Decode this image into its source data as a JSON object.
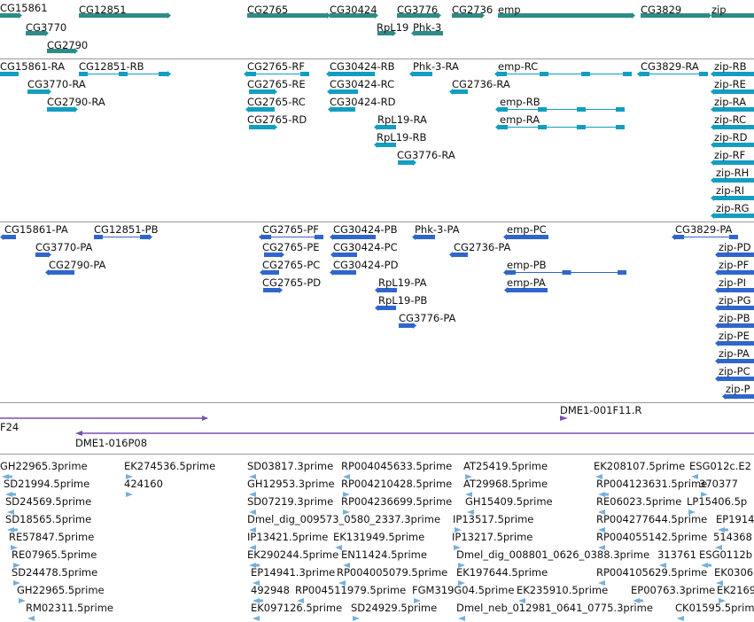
{
  "colors": {
    "gene": "#2e8b87",
    "transcript": "#139ec0",
    "protein": "#2f66cc",
    "clone": "#7a4fb5",
    "est": "#75b0dc",
    "separator": "#9a9a9a"
  },
  "tracks": {
    "genes": {
      "labels": [
        "CG15861",
        "CG12851",
        "CG2765",
        "CG30424",
        "CG3776",
        "CG2736",
        "emp",
        "CG3829",
        "zip",
        "CG3770",
        "RpL19",
        "Phk-3",
        "CG2790"
      ]
    },
    "transcripts": {
      "labels": [
        "CG15861-RA",
        "CG12851-RB",
        "CG2765-RF",
        "CG30424-RB",
        "Phk-3-RA",
        "emp-RC",
        "CG3829-RA",
        "zip-RB",
        "CG3770-RA",
        "CG2765-RE",
        "CG30424-RC",
        "CG2736-RA",
        "zip-RE",
        "CG2790-RA",
        "CG2765-RC",
        "CG30424-RD",
        "emp-RB",
        "zip-RA",
        "CG2765-RD",
        "RpL19-RA",
        "emp-RA",
        "zip-RC",
        "RpL19-RB",
        "zip-RD",
        "CG3776-RA",
        "zip-RF",
        "zip-RH",
        "zip-RI",
        "zip-RG"
      ]
    },
    "proteins": {
      "labels": [
        "CG15861-PA",
        "CG12851-PB",
        "CG2765-PF",
        "CG30424-PB",
        "Phk-3-PA",
        "emp-PC",
        "CG3829-PA",
        "CG3770-PA",
        "CG2765-PE",
        "CG30424-PC",
        "CG2736-PA",
        "zip-PD",
        "CG2790-PA",
        "CG2765-PC",
        "CG30424-PD",
        "emp-PB",
        "zip-PF",
        "CG2765-PD",
        "RpL19-PA",
        "emp-PA",
        "zip-PI",
        "RpL19-PB",
        "zip-PG",
        "CG3776-PA",
        "zip-PB",
        "zip-PE",
        "zip-PA",
        "zip-PC",
        "zip-P"
      ]
    },
    "clones": {
      "labels": [
        "DME1-001F11.R",
        "F24",
        "DME1-016P08"
      ]
    },
    "ests": {
      "labels": [
        "GH22965.3prime",
        "EK274536.5prime",
        "SD03817.3prime",
        "RP004045633.5prime",
        "AT25419.5prime",
        "EK208107.5prime",
        "ESG012c.E2",
        "424160",
        "SD21994.5prime",
        "GH12953.3prime",
        "RP004210428.5prime",
        "AT29968.5prime",
        "RP004123631.5prime",
        "370377",
        "SD24569.5prime",
        "SD07219.3prime",
        "RP004236699.5prime",
        "GH15409.5prime",
        "RE06023.5prime",
        "LP15406.5p",
        "SD18565.5prime",
        "Dmel_dig_009573_0580_2337.3prime",
        "IP13517.5prime",
        "RP004277644.5prime",
        "EP1914",
        "RE57847.5prime",
        "IP13421.5prime",
        "EK131949.5prime",
        "IP13217.5prime",
        "RP004055142.5prime",
        "514368",
        "RE07965.5prime",
        "EK290244.5prime",
        "EN11424.5prime",
        "Dmel_dig_008801_0626_0388.3prime",
        "313761",
        "ESG0112b",
        "SD24478.5prime",
        "EP14941.3prime",
        "RP004005079.5prime",
        "EK197644.5prime",
        "RP004105629.5prime",
        "EK0306",
        "GH22965.5prime",
        "492948",
        "RP004511979.5prime",
        "FGM319G04.5prime",
        "EK235910.5prime",
        "EP00763.3prime",
        "EK2169",
        "RM02311.5prime",
        "EK097126.5prime",
        "SD24929.5prime",
        "Dmel_neb_012981_0641_0775.3prime",
        "CK01595.5prime"
      ]
    }
  }
}
